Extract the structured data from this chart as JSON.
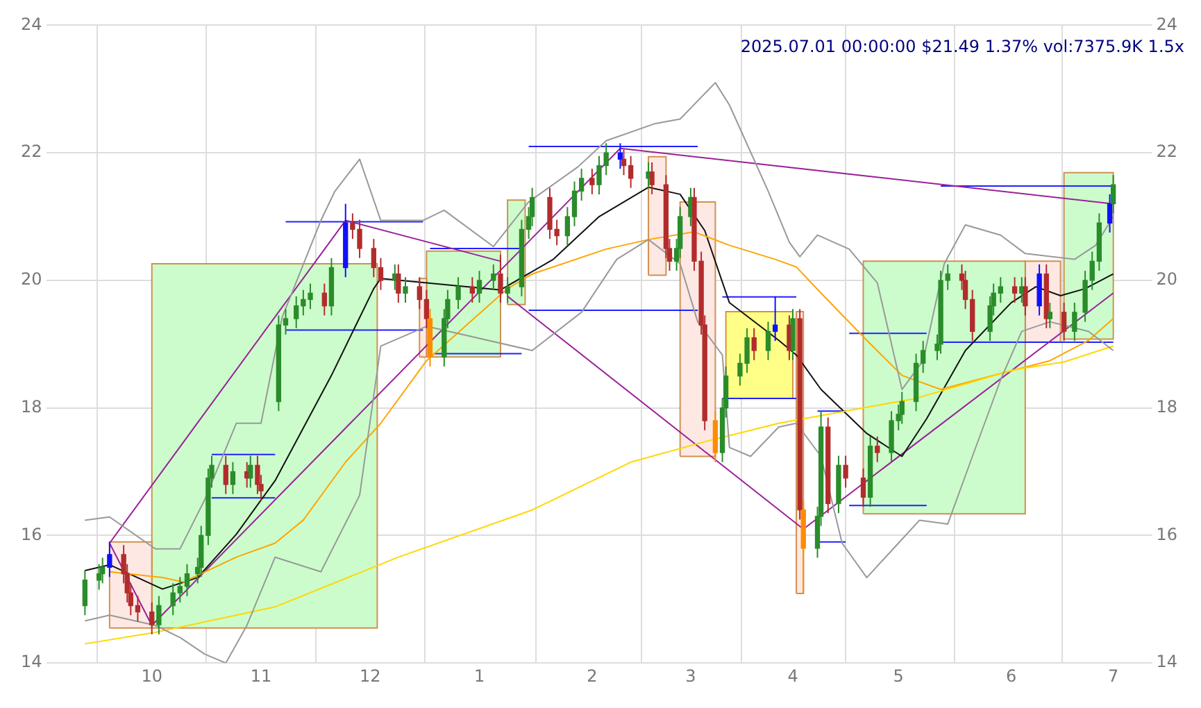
{
  "chart_data": {
    "type": "candlestick",
    "title": "2025.07.01 00:00:00 $21.49 1.37% vol:7375.9K 1.5x",
    "x": [
      "2024-09-12",
      "2024-09-16",
      "2024-09-17",
      "2024-09-19",
      "2024-09-23",
      "2024-09-24",
      "2024-09-25",
      "2024-09-27",
      "2024-10-01",
      "2024-10-03",
      "2024-10-07",
      "2024-10-09",
      "2024-10-11",
      "2024-10-14",
      "2024-10-15",
      "2024-10-17",
      "2024-10-18",
      "2024-10-22",
      "2024-10-24",
      "2024-10-28",
      "2024-10-29",
      "2024-10-31",
      "2024-11-01",
      "2024-11-06",
      "2024-11-08",
      "2024-11-11",
      "2024-11-13",
      "2024-11-15",
      "2024-11-19",
      "2024-11-21",
      "2024-11-25",
      "2024-11-27",
      "2024-11-29",
      "2024-12-03",
      "2024-12-05",
      "2024-12-09",
      "2024-12-10",
      "2024-12-12",
      "2024-12-16",
      "2024-12-18",
      "2024-12-19",
      "2024-12-23",
      "2024-12-24",
      "2024-12-27",
      "2024-12-31",
      "2025-01-02",
      "2025-01-06",
      "2025-01-08",
      "2025-01-10",
      "2025-01-14",
      "2025-01-16",
      "2025-01-17",
      "2025-01-22",
      "2025-01-24",
      "2025-01-27",
      "2025-01-29",
      "2025-01-31",
      "2025-02-03",
      "2025-02-05",
      "2025-02-07",
      "2025-02-11",
      "2025-02-12",
      "2025-02-14",
      "2025-02-19",
      "2025-02-20",
      "2025-02-24",
      "2025-02-25",
      "2025-02-27",
      "2025-02-28",
      "2025-03-03",
      "2025-03-04",
      "2025-03-06",
      "2025-03-07",
      "2025-03-10",
      "2025-03-12",
      "2025-03-13",
      "2025-03-17",
      "2025-03-19",
      "2025-03-21",
      "2025-03-25",
      "2025-03-27",
      "2025-03-31",
      "2025-04-01",
      "2025-04-03",
      "2025-04-04",
      "2025-04-08",
      "2025-04-09",
      "2025-04-11",
      "2025-04-14",
      "2025-04-16",
      "2025-04-21",
      "2025-04-23",
      "2025-04-25",
      "2025-04-29",
      "2025-05-01",
      "2025-05-02",
      "2025-05-06",
      "2025-05-08",
      "2025-05-12",
      "2025-05-13",
      "2025-05-15",
      "2025-05-19",
      "2025-05-20",
      "2025-05-22",
      "2025-05-27",
      "2025-05-28",
      "2025-05-30",
      "2025-06-03",
      "2025-06-05",
      "2025-06-06",
      "2025-06-10",
      "2025-06-12",
      "2025-06-13",
      "2025-06-17",
      "2025-06-20",
      "2025-06-23",
      "2025-06-25",
      "2025-06-27",
      "2025-06-30",
      "2025-07-01"
    ],
    "ohlc": [
      [
        14.9,
        15.45,
        14.75,
        15.3
      ],
      [
        15.3,
        15.55,
        15.15,
        15.4
      ],
      [
        15.4,
        15.65,
        15.25,
        15.5
      ],
      [
        15.5,
        15.9,
        15.35,
        15.7
      ],
      [
        15.7,
        15.85,
        15.25,
        15.4
      ],
      [
        15.4,
        15.55,
        14.95,
        15.1
      ],
      [
        15.1,
        15.25,
        14.75,
        14.9
      ],
      [
        14.9,
        15.05,
        14.65,
        14.8
      ],
      [
        14.8,
        14.95,
        14.45,
        14.6
      ],
      [
        14.6,
        15.05,
        14.45,
        14.9
      ],
      [
        14.9,
        15.25,
        14.75,
        15.1
      ],
      [
        15.1,
        15.35,
        14.95,
        15.2
      ],
      [
        15.2,
        15.55,
        15.05,
        15.4
      ],
      [
        15.4,
        15.65,
        15.25,
        15.5
      ],
      [
        15.5,
        16.15,
        15.35,
        16.0
      ],
      [
        16.0,
        17.05,
        15.85,
        16.9
      ],
      [
        16.9,
        17.25,
        16.75,
        17.1
      ],
      [
        17.1,
        17.25,
        16.65,
        16.8
      ],
      [
        16.8,
        17.15,
        16.65,
        17.0
      ],
      [
        17.0,
        17.15,
        16.75,
        16.9
      ],
      [
        16.9,
        17.25,
        16.75,
        17.1
      ],
      [
        17.1,
        17.25,
        16.65,
        16.8
      ],
      [
        16.8,
        16.95,
        16.55,
        16.7
      ],
      [
        18.1,
        19.45,
        17.95,
        19.3
      ],
      [
        19.3,
        19.55,
        19.15,
        19.4
      ],
      [
        19.4,
        19.75,
        19.25,
        19.6
      ],
      [
        19.6,
        19.85,
        19.45,
        19.7
      ],
      [
        19.7,
        19.95,
        19.55,
        19.8
      ],
      [
        19.8,
        19.95,
        19.45,
        19.6
      ],
      [
        19.6,
        20.35,
        19.45,
        20.2
      ],
      [
        20.2,
        21.2,
        20.05,
        20.9
      ],
      [
        20.9,
        21.05,
        20.65,
        20.8
      ],
      [
        20.8,
        20.95,
        20.35,
        20.5
      ],
      [
        20.5,
        20.65,
        20.05,
        20.2
      ],
      [
        20.2,
        20.35,
        19.85,
        20.0
      ],
      [
        20.0,
        20.25,
        19.85,
        20.1
      ],
      [
        20.1,
        20.25,
        19.65,
        19.8
      ],
      [
        19.8,
        20.05,
        19.65,
        19.9
      ],
      [
        19.9,
        20.05,
        19.55,
        19.7
      ],
      [
        19.7,
        19.85,
        19.25,
        19.4
      ],
      [
        19.4,
        19.55,
        18.65,
        18.8
      ],
      [
        18.8,
        19.55,
        18.65,
        19.4
      ],
      [
        19.4,
        19.85,
        19.25,
        19.7
      ],
      [
        19.7,
        20.05,
        19.55,
        19.9
      ],
      [
        19.9,
        20.05,
        19.65,
        19.8
      ],
      [
        19.8,
        20.15,
        19.65,
        20.0
      ],
      [
        20.0,
        20.25,
        19.85,
        20.1
      ],
      [
        20.1,
        20.4,
        19.65,
        19.8
      ],
      [
        19.8,
        20.05,
        19.65,
        19.9
      ],
      [
        19.9,
        20.95,
        19.75,
        20.8
      ],
      [
        20.8,
        21.15,
        20.65,
        21.0
      ],
      [
        21.0,
        21.45,
        20.85,
        21.3
      ],
      [
        21.3,
        21.45,
        20.65,
        20.8
      ],
      [
        20.8,
        20.95,
        20.55,
        20.7
      ],
      [
        20.7,
        21.15,
        20.55,
        21.0
      ],
      [
        21.0,
        21.55,
        20.85,
        21.4
      ],
      [
        21.4,
        21.75,
        21.25,
        21.6
      ],
      [
        21.6,
        21.75,
        21.35,
        21.5
      ],
      [
        21.5,
        21.95,
        21.35,
        21.8
      ],
      [
        21.8,
        22.15,
        21.65,
        22.0
      ],
      [
        22.0,
        22.15,
        21.75,
        21.9
      ],
      [
        21.9,
        22.05,
        21.65,
        21.8
      ],
      [
        21.8,
        21.95,
        21.45,
        21.6
      ],
      [
        21.6,
        21.85,
        21.45,
        21.7
      ],
      [
        21.7,
        21.85,
        21.35,
        21.5
      ],
      [
        21.5,
        21.65,
        20.35,
        20.5
      ],
      [
        20.5,
        20.65,
        20.15,
        20.3
      ],
      [
        20.3,
        20.65,
        20.15,
        20.5
      ],
      [
        20.5,
        21.15,
        20.35,
        21.0
      ],
      [
        21.0,
        21.45,
        20.85,
        21.3
      ],
      [
        21.3,
        21.45,
        20.15,
        20.3
      ],
      [
        20.3,
        20.45,
        19.15,
        19.3
      ],
      [
        19.3,
        19.45,
        17.65,
        17.8
      ],
      [
        17.8,
        17.95,
        17.15,
        17.3
      ],
      [
        17.3,
        18.15,
        17.15,
        18.0
      ],
      [
        18.0,
        18.65,
        17.85,
        18.5
      ],
      [
        18.5,
        18.85,
        18.35,
        18.7
      ],
      [
        18.7,
        19.25,
        18.55,
        19.1
      ],
      [
        19.1,
        19.25,
        18.75,
        18.9
      ],
      [
        18.9,
        19.35,
        18.75,
        19.2
      ],
      [
        19.2,
        19.75,
        19.05,
        19.3
      ],
      [
        19.3,
        19.45,
        18.75,
        18.9
      ],
      [
        18.9,
        19.55,
        18.75,
        19.4
      ],
      [
        19.4,
        19.55,
        16.25,
        16.4
      ],
      [
        16.4,
        16.55,
        15.1,
        15.8
      ],
      [
        15.8,
        16.45,
        15.65,
        16.3
      ],
      [
        16.3,
        17.95,
        16.15,
        17.7
      ],
      [
        17.7,
        17.85,
        16.35,
        16.5
      ],
      [
        16.5,
        17.25,
        16.35,
        17.1
      ],
      [
        17.1,
        17.25,
        16.75,
        16.9
      ],
      [
        16.9,
        17.05,
        16.45,
        16.6
      ],
      [
        16.6,
        17.55,
        16.45,
        17.4
      ],
      [
        17.4,
        17.55,
        17.15,
        17.3
      ],
      [
        17.3,
        17.95,
        17.15,
        17.8
      ],
      [
        17.8,
        18.05,
        17.65,
        17.9
      ],
      [
        17.9,
        18.25,
        17.75,
        18.1
      ],
      [
        18.1,
        18.85,
        17.95,
        18.7
      ],
      [
        18.7,
        19.05,
        18.55,
        18.9
      ],
      [
        18.9,
        19.15,
        18.75,
        19.0
      ],
      [
        19.0,
        20.15,
        18.85,
        20.0
      ],
      [
        20.0,
        20.25,
        19.85,
        20.1
      ],
      [
        20.1,
        20.25,
        19.85,
        20.0
      ],
      [
        20.0,
        20.15,
        19.55,
        19.7
      ],
      [
        19.7,
        19.85,
        19.05,
        19.2
      ],
      [
        19.2,
        19.75,
        19.05,
        19.6
      ],
      [
        19.6,
        19.95,
        19.45,
        19.8
      ],
      [
        19.8,
        20.05,
        19.65,
        19.9
      ],
      [
        19.9,
        20.05,
        19.65,
        19.8
      ],
      [
        19.8,
        20.05,
        19.65,
        19.9
      ],
      [
        19.9,
        20.05,
        19.45,
        19.6
      ],
      [
        19.6,
        20.25,
        19.45,
        20.1
      ],
      [
        20.1,
        20.25,
        19.25,
        19.4
      ],
      [
        19.4,
        19.65,
        19.25,
        19.5
      ],
      [
        19.5,
        19.65,
        19.05,
        19.2
      ],
      [
        19.2,
        19.65,
        19.05,
        19.5
      ],
      [
        19.5,
        20.15,
        19.35,
        20.0
      ],
      [
        20.0,
        20.45,
        19.85,
        20.3
      ],
      [
        20.3,
        21.05,
        20.15,
        20.9
      ],
      [
        20.9,
        21.35,
        20.75,
        21.2
      ],
      [
        21.2,
        21.65,
        21.05,
        21.5
      ]
    ],
    "colors": [
      "#2a8c2a",
      "#2a8c2a",
      "#2a8c2a",
      "#1010ff",
      "#b22c2c",
      "#b22c2c",
      "#b22c2c",
      "#b22c2c",
      "#b22c2c",
      "#2a8c2a",
      "#2a8c2a",
      "#2a8c2a",
      "#2a8c2a",
      "#2a8c2a",
      "#2a8c2a",
      "#2a8c2a",
      "#2a8c2a",
      "#b22c2c",
      "#2a8c2a",
      "#b22c2c",
      "#2a8c2a",
      "#b22c2c",
      "#b22c2c",
      "#2a8c2a",
      "#2a8c2a",
      "#2a8c2a",
      "#2a8c2a",
      "#2a8c2a",
      "#b22c2c",
      "#2a8c2a",
      "#1010ff",
      "#b22c2c",
      "#b22c2c",
      "#b22c2c",
      "#b22c2c",
      "#2a8c2a",
      "#b22c2c",
      "#2a8c2a",
      "#b22c2c",
      "#b22c2c",
      "#ff8c00",
      "#2a8c2a",
      "#2a8c2a",
      "#2a8c2a",
      "#b22c2c",
      "#2a8c2a",
      "#2a8c2a",
      "#b22c2c",
      "#2a8c2a",
      "#2a8c2a",
      "#2a8c2a",
      "#2a8c2a",
      "#b22c2c",
      "#b22c2c",
      "#2a8c2a",
      "#2a8c2a",
      "#2a8c2a",
      "#b22c2c",
      "#2a8c2a",
      "#2a8c2a",
      "#1010ff",
      "#b22c2c",
      "#b22c2c",
      "#2a8c2a",
      "#b22c2c",
      "#b22c2c",
      "#b22c2c",
      "#2a8c2a",
      "#2a8c2a",
      "#2a8c2a",
      "#b22c2c",
      "#b22c2c",
      "#b22c2c",
      "#ff8c00",
      "#2a8c2a",
      "#2a8c2a",
      "#2a8c2a",
      "#2a8c2a",
      "#b22c2c",
      "#2a8c2a",
      "#1010ff",
      "#b22c2c",
      "#2a8c2a",
      "#b22c2c",
      "#ff8c00",
      "#2a8c2a",
      "#2a8c2a",
      "#b22c2c",
      "#2a8c2a",
      "#b22c2c",
      "#b22c2c",
      "#2a8c2a",
      "#b22c2c",
      "#2a8c2a",
      "#2a8c2a",
      "#2a8c2a",
      "#2a8c2a",
      "#2a8c2a",
      "#2a8c2a",
      "#2a8c2a",
      "#2a8c2a",
      "#b22c2c",
      "#b22c2c",
      "#b22c2c",
      "#2a8c2a",
      "#2a8c2a",
      "#2a8c2a",
      "#b22c2c",
      "#2a8c2a",
      "#b22c2c",
      "#1010ff",
      "#b22c2c",
      "#2a8c2a",
      "#b22c2c",
      "#2a8c2a",
      "#2a8c2a",
      "#2a8c2a",
      "#2a8c2a",
      "#1010ff",
      "#2a8c2a"
    ],
    "series": [
      {
        "type": "area",
        "color": "#fde8e4",
        "x": [
          "2024-09-19",
          "2024-10-01",
          "2024-10-01",
          "2024-09-19",
          "2024-09-19"
        ],
        "values": [
          14.55,
          14.55,
          15.9,
          15.9,
          14.55
        ]
      },
      {
        "type": "area",
        "color": "#ccfccc",
        "x": [
          "2024-10-01",
          "2024-12-04",
          "2024-12-04",
          "2024-10-01",
          "2024-10-01"
        ],
        "values": [
          14.55,
          14.55,
          20.26,
          20.26,
          14.55
        ]
      },
      {
        "type": "area",
        "color": "#fde8e4",
        "x": [
          "2024-12-16",
          "2024-12-18",
          "2024-12-18",
          "2024-12-16",
          "2024-12-16"
        ],
        "values": [
          18.8,
          18.8,
          20.03,
          20.03,
          18.8
        ]
      },
      {
        "type": "area",
        "color": "#ccfccc",
        "x": [
          "2024-12-18",
          "2025-01-08",
          "2025-01-08",
          "2024-12-18",
          "2024-12-18"
        ],
        "values": [
          18.8,
          18.8,
          20.46,
          20.46,
          18.8
        ]
      },
      {
        "type": "area",
        "color": "#ccfccc",
        "x": [
          "2025-01-10",
          "2025-01-15",
          "2025-01-15",
          "2025-01-10",
          "2025-01-10"
        ],
        "values": [
          19.62,
          19.62,
          21.26,
          21.26,
          19.62
        ]
      },
      {
        "type": "area",
        "color": "#fde8e4",
        "x": [
          "2025-02-19",
          "2025-02-24",
          "2025-02-24",
          "2025-02-19",
          "2025-02-19"
        ],
        "values": [
          20.08,
          20.08,
          21.94,
          21.94,
          20.08
        ]
      },
      {
        "type": "area",
        "color": "#fde8e4",
        "x": [
          "2025-02-28",
          "2025-03-10",
          "2025-03-10",
          "2025-02-28",
          "2025-02-28"
        ],
        "values": [
          17.24,
          17.24,
          21.23,
          21.23,
          17.24
        ]
      },
      {
        "type": "area",
        "color": "#ffff88",
        "x": [
          "2025-03-13",
          "2025-04-01",
          "2025-04-01",
          "2025-03-13",
          "2025-03-13"
        ],
        "values": [
          18.15,
          18.15,
          19.51,
          19.51,
          18.15
        ]
      },
      {
        "type": "area",
        "color": "#fde8e4",
        "x": [
          "2025-04-02",
          "2025-04-04",
          "2025-04-04",
          "2025-04-02",
          "2025-04-02"
        ],
        "values": [
          15.09,
          15.09,
          19.51,
          19.51,
          15.09
        ]
      },
      {
        "type": "area",
        "color": "#ccfccc",
        "x": [
          "2025-04-21",
          "2025-06-06",
          "2025-06-06",
          "2025-04-21",
          "2025-04-21"
        ],
        "values": [
          16.34,
          16.34,
          20.3,
          20.3,
          16.34
        ]
      },
      {
        "type": "area",
        "color": "#fde8e4",
        "x": [
          "2025-06-06",
          "2025-06-16",
          "2025-06-16",
          "2025-06-06",
          "2025-06-06"
        ],
        "values": [
          19.03,
          19.03,
          20.3,
          20.3,
          19.03
        ]
      },
      {
        "type": "area",
        "color": "#ccfccc",
        "x": [
          "2025-06-17",
          "2025-07-01",
          "2025-07-01",
          "2025-06-17",
          "2025-06-17"
        ],
        "values": [
          19.08,
          19.08,
          21.69,
          21.69,
          19.08
        ]
      },
      {
        "type": "line",
        "color": "#999999",
        "x": [
          "2024-09-12",
          "2024-09-19",
          "2024-10-02",
          "2024-10-09",
          "2024-10-16",
          "2024-10-25",
          "2024-11-01",
          "2024-11-07",
          "2024-11-18",
          "2024-11-22",
          "2024-11-29",
          "2024-12-05",
          "2024-12-17",
          "2024-12-23",
          "2025-01-06",
          "2025-01-16",
          "2025-01-30",
          "2025-02-07",
          "2025-02-21",
          "2025-02-28",
          "2025-03-10",
          "2025-03-14",
          "2025-03-25",
          "2025-03-31",
          "2025-04-03",
          "2025-04-08",
          "2025-04-17",
          "2025-04-25",
          "2025-05-02",
          "2025-05-08",
          "2025-05-14",
          "2025-05-20",
          "2025-05-30",
          "2025-06-06",
          "2025-06-20",
          "2025-06-26",
          "2025-07-01"
        ],
        "values": [
          16.24,
          16.29,
          15.79,
          15.79,
          16.56,
          17.76,
          17.76,
          19.42,
          20.94,
          21.4,
          21.9,
          20.94,
          20.94,
          21.1,
          20.53,
          21.23,
          21.78,
          22.19,
          22.46,
          22.53,
          23.1,
          22.75,
          21.4,
          20.6,
          20.37,
          20.71,
          20.49,
          19.96,
          18.29,
          18.74,
          20.26,
          20.87,
          20.71,
          20.42,
          20.33,
          20.55,
          21.0
        ]
      },
      {
        "type": "line",
        "color": "#999999",
        "x": [
          "2024-09-12",
          "2024-09-19",
          "2024-10-02",
          "2024-10-09",
          "2024-10-16",
          "2024-10-22",
          "2024-10-28",
          "2024-11-05",
          "2024-11-18",
          "2024-11-29",
          "2024-12-05",
          "2024-12-18",
          "2025-01-17",
          "2025-01-31",
          "2025-02-10",
          "2025-02-19",
          "2025-02-28",
          "2025-03-05",
          "2025-03-12",
          "2025-03-14",
          "2025-03-20",
          "2025-03-28",
          "2025-04-02",
          "2025-04-09",
          "2025-04-15",
          "2025-04-22",
          "2025-05-01",
          "2025-05-07",
          "2025-05-15",
          "2025-05-22",
          "2025-05-30",
          "2025-06-05",
          "2025-06-13",
          "2025-06-24",
          "2025-07-01"
        ],
        "values": [
          14.66,
          14.75,
          14.59,
          14.4,
          14.14,
          14.0,
          14.59,
          15.66,
          15.43,
          16.63,
          18.97,
          19.28,
          18.9,
          19.5,
          20.33,
          20.64,
          20.26,
          19.35,
          18.83,
          17.38,
          17.24,
          17.7,
          17.76,
          17.24,
          15.88,
          15.34,
          15.88,
          16.24,
          16.18,
          17.24,
          18.44,
          19.2,
          19.35,
          19.2,
          18.9
        ]
      },
      {
        "type": "line",
        "color": "#ffd700",
        "x": [
          "2024-09-12",
          "2024-10-02",
          "2024-11-05",
          "2024-12-10",
          "2025-01-17",
          "2025-02-14",
          "2025-03-07",
          "2025-03-28",
          "2025-05-06",
          "2025-06-03",
          "2025-06-17",
          "2025-07-01"
        ],
        "values": [
          14.3,
          14.48,
          14.88,
          15.66,
          16.4,
          17.15,
          17.47,
          17.76,
          18.15,
          18.6,
          18.72,
          18.97
        ]
      },
      {
        "type": "line",
        "color": "#ffa500",
        "x": [
          "2024-09-19",
          "2024-10-04",
          "2024-10-10",
          "2024-10-25",
          "2024-11-05",
          "2024-11-13",
          "2024-11-25",
          "2024-12-05",
          "2024-12-18",
          "2025-01-10",
          "2025-01-17",
          "2025-02-07",
          "2025-02-19",
          "2025-03-04",
          "2025-03-14",
          "2025-03-27",
          "2025-04-02",
          "2025-04-09",
          "2025-04-22",
          "2025-05-02",
          "2025-05-13",
          "2025-05-28",
          "2025-06-13",
          "2025-06-24",
          "2025-07-01"
        ],
        "values": [
          15.43,
          15.34,
          15.27,
          15.66,
          15.88,
          16.24,
          17.15,
          17.76,
          18.74,
          19.87,
          20.1,
          20.49,
          20.64,
          20.76,
          20.55,
          20.33,
          20.21,
          19.8,
          19.06,
          18.51,
          18.29,
          18.51,
          18.74,
          19.06,
          19.4
        ]
      },
      {
        "type": "line",
        "color": "#111111",
        "x": [
          "2024-09-12",
          "2024-09-19",
          "2024-10-04",
          "2024-10-14",
          "2024-10-25",
          "2024-11-05",
          "2024-11-21",
          "2024-12-03",
          "2024-12-05",
          "2024-12-18",
          "2025-01-08",
          "2025-01-23",
          "2025-02-05",
          "2025-02-19",
          "2025-02-28",
          "2025-03-07",
          "2025-03-14",
          "2025-03-28",
          "2025-04-02",
          "2025-04-09",
          "2025-04-22",
          "2025-05-02",
          "2025-05-09",
          "2025-05-20",
          "2025-06-02",
          "2025-06-09",
          "2025-06-16",
          "2025-06-23",
          "2025-07-01"
        ],
        "values": [
          15.45,
          15.54,
          15.16,
          15.34,
          16.02,
          16.86,
          18.51,
          19.87,
          20.03,
          19.96,
          19.85,
          20.33,
          21.0,
          21.46,
          21.35,
          20.78,
          19.65,
          19.06,
          18.83,
          18.29,
          17.6,
          17.24,
          17.83,
          18.9,
          19.65,
          19.9,
          19.76,
          19.87,
          20.1
        ]
      },
      {
        "type": "line",
        "color": "#992299",
        "x": [
          "2024-10-01",
          "2024-09-19",
          "2024-11-25",
          "2025-01-08"
        ],
        "values": [
          14.59,
          15.88,
          20.94,
          20.3
        ]
      },
      {
        "type": "line",
        "color": "#992299",
        "x": [
          "2025-01-10",
          "2025-04-04",
          "2025-07-01"
        ],
        "values": [
          19.75,
          16.1,
          19.8
        ]
      },
      {
        "type": "line",
        "color": "#992299",
        "x": [
          "2024-10-01",
          "2025-02-11",
          "2025-07-01"
        ],
        "values": [
          14.59,
          22.07,
          21.2
        ]
      },
      {
        "type": "line",
        "color": "#2020ff",
        "x": [
          "2024-11-08",
          "2024-12-17"
        ],
        "values": [
          20.92,
          20.92
        ]
      },
      {
        "type": "line",
        "color": "#2020ff",
        "x": [
          "2024-11-08",
          "2024-12-17"
        ],
        "values": [
          19.22,
          19.22
        ]
      },
      {
        "type": "line",
        "color": "#2020ff",
        "x": [
          "2024-10-18",
          "2024-11-05"
        ],
        "values": [
          17.27,
          17.27
        ]
      },
      {
        "type": "line",
        "color": "#2020ff",
        "x": [
          "2024-10-18",
          "2024-11-05"
        ],
        "values": [
          16.59,
          16.59
        ]
      },
      {
        "type": "line",
        "color": "#2020ff",
        "x": [
          "2024-12-19",
          "2025-01-14"
        ],
        "values": [
          20.5,
          20.5
        ]
      },
      {
        "type": "line",
        "color": "#2020ff",
        "x": [
          "2024-12-20",
          "2025-01-14"
        ],
        "values": [
          18.85,
          18.85
        ]
      },
      {
        "type": "line",
        "color": "#2020ff",
        "x": [
          "2025-01-16",
          "2025-03-05"
        ],
        "values": [
          22.1,
          22.1
        ]
      },
      {
        "type": "line",
        "color": "#2020ff",
        "x": [
          "2025-01-16",
          "2025-03-05"
        ],
        "values": [
          19.53,
          19.53
        ]
      },
      {
        "type": "line",
        "color": "#2020ff",
        "x": [
          "2025-03-12",
          "2025-04-02"
        ],
        "values": [
          19.74,
          19.74
        ]
      },
      {
        "type": "line",
        "color": "#2020ff",
        "x": [
          "2025-03-12",
          "2025-04-02"
        ],
        "values": [
          18.15,
          18.15
        ]
      },
      {
        "type": "line",
        "color": "#2020ff",
        "x": [
          "2025-04-08",
          "2025-04-16"
        ],
        "values": [
          17.95,
          17.95
        ]
      },
      {
        "type": "line",
        "color": "#2020ff",
        "x": [
          "2025-04-08",
          "2025-04-16"
        ],
        "values": [
          15.9,
          15.9
        ]
      },
      {
        "type": "line",
        "color": "#2020ff",
        "x": [
          "2025-04-17",
          "2025-05-09"
        ],
        "values": [
          19.17,
          19.17
        ]
      },
      {
        "type": "line",
        "color": "#2020ff",
        "x": [
          "2025-04-17",
          "2025-05-09"
        ],
        "values": [
          16.47,
          16.47
        ]
      },
      {
        "type": "line",
        "color": "#2020ff",
        "x": [
          "2025-05-13",
          "2025-07-01"
        ],
        "values": [
          21.48,
          21.48
        ]
      },
      {
        "type": "line",
        "color": "#2020ff",
        "x": [
          "2025-05-13",
          "2025-07-01"
        ],
        "values": [
          19.03,
          19.03
        ]
      }
    ],
    "xlim": [
      "2024-09-01",
      "2025-07-12"
    ],
    "xticks": [
      {
        "value": "2024-10-01",
        "label": "10"
      },
      {
        "value": "2024-11-01",
        "label": "11"
      },
      {
        "value": "2024-12-02",
        "label": "12"
      },
      {
        "value": "2025-01-02",
        "label": "1"
      },
      {
        "value": "2025-02-03",
        "label": "2"
      },
      {
        "value": "2025-03-03",
        "label": "3"
      },
      {
        "value": "2025-04-01",
        "label": "4"
      },
      {
        "value": "2025-05-01",
        "label": "5"
      },
      {
        "value": "2025-06-02",
        "label": "6"
      },
      {
        "value": "2025-07-01",
        "label": "7"
      }
    ],
    "ylim": [
      14,
      24
    ],
    "yticks": [
      14,
      16,
      18,
      20,
      22,
      24
    ],
    "y2lim": [
      14,
      24
    ],
    "y2ticks": [
      14,
      16,
      18,
      20,
      22,
      24
    ],
    "grid": true
  }
}
